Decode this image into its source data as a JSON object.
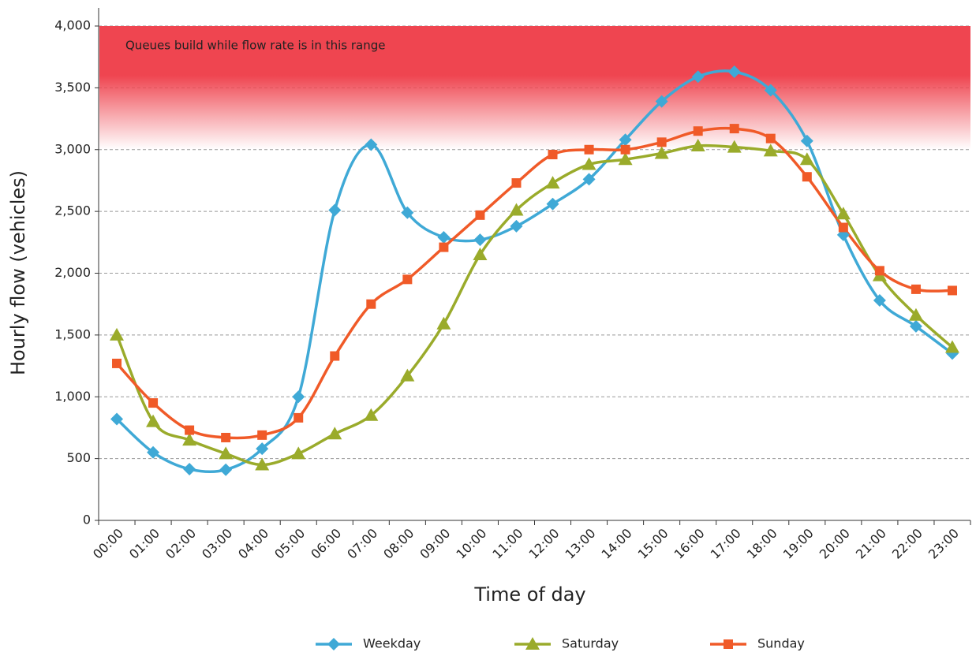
{
  "chart_data": {
    "type": "line",
    "xlabel": "Time of day",
    "ylabel": "Hourly flow (vehicles)",
    "annotation": {
      "text": "Queues build while flow rate is in this range",
      "range": [
        3000,
        4000
      ],
      "color": "#ef4550"
    },
    "categories": [
      "00:00",
      "01:00",
      "02:00",
      "03:00",
      "04:00",
      "05:00",
      "06:00",
      "07:00",
      "08:00",
      "09:00",
      "10:00",
      "11:00",
      "12:00",
      "13:00",
      "14:00",
      "15:00",
      "16:00",
      "17:00",
      "18:00",
      "19:00",
      "20:00",
      "21:00",
      "22:00",
      "23:00"
    ],
    "series": [
      {
        "name": "Weekday",
        "color": "#3fa9d6",
        "marker": "diamond",
        "values": [
          820,
          550,
          415,
          410,
          580,
          1000,
          2510,
          3040,
          2490,
          2290,
          2270,
          2380,
          2560,
          2760,
          3080,
          3390,
          3590,
          3630,
          3480,
          3070,
          2310,
          1780,
          1570,
          1350
        ]
      },
      {
        "name": "Saturday",
        "color": "#9aab2b",
        "marker": "triangle",
        "values": [
          1500,
          800,
          650,
          540,
          450,
          540,
          700,
          850,
          1170,
          1590,
          2150,
          2510,
          2730,
          2880,
          2920,
          2970,
          3030,
          3020,
          2990,
          2920,
          2480,
          1980,
          1660,
          1400
        ]
      },
      {
        "name": "Sunday",
        "color": "#f05a28",
        "marker": "square",
        "values": [
          1270,
          950,
          730,
          670,
          690,
          830,
          1330,
          1750,
          1950,
          2210,
          2470,
          2730,
          2960,
          3000,
          3000,
          3060,
          3150,
          3170,
          3090,
          2780,
          2370,
          2020,
          1870,
          1860
        ]
      }
    ],
    "ylim": [
      0,
      4000
    ],
    "yticks": [
      0,
      500,
      {
        "value": 1000,
        "label": "1,000"
      },
      {
        "value": 1500,
        "label": "1,500"
      },
      {
        "value": 2000,
        "label": "2,000"
      },
      {
        "value": 2500,
        "label": "2,500"
      },
      {
        "value": 3000,
        "label": "3,000"
      },
      {
        "value": 3500,
        "label": "3,500"
      },
      {
        "value": 4000,
        "label": "4,000"
      }
    ],
    "grid": true
  }
}
